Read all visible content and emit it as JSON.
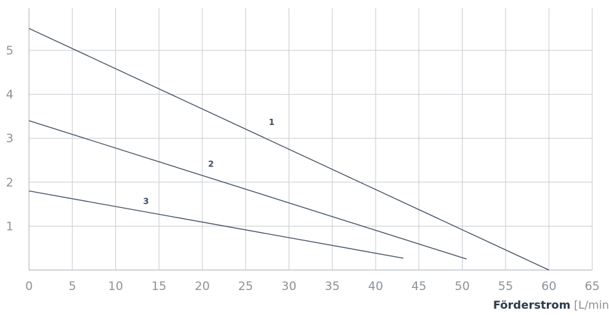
{
  "chart_data": {
    "type": "line",
    "xlim": [
      0,
      65
    ],
    "ylim": [
      0,
      5.5
    ],
    "x_ticks": [
      0,
      5,
      10,
      15,
      20,
      25,
      30,
      35,
      40,
      45,
      50,
      55,
      60,
      65
    ],
    "y_ticks": [
      1,
      2,
      3,
      4,
      5
    ],
    "xlabel_bold": "Förderstrom",
    "xlabel_unit": "[L/min",
    "grid": true,
    "colors": {
      "line": "#3f4f5f",
      "grid": "#c9cdd1",
      "tick": "#8b9298"
    },
    "series": [
      {
        "name": "1",
        "x": [
          0,
          60
        ],
        "y": [
          5.5,
          0.0
        ],
        "label_at": [
          28,
          3.3
        ]
      },
      {
        "name": "2",
        "x": [
          0,
          50.5
        ],
        "y": [
          3.4,
          0.25
        ],
        "label_at": [
          21,
          2.35
        ]
      },
      {
        "name": "3",
        "x": [
          0,
          43.2
        ],
        "y": [
          1.8,
          0.27
        ],
        "label_at": [
          13.5,
          1.5
        ]
      }
    ]
  }
}
